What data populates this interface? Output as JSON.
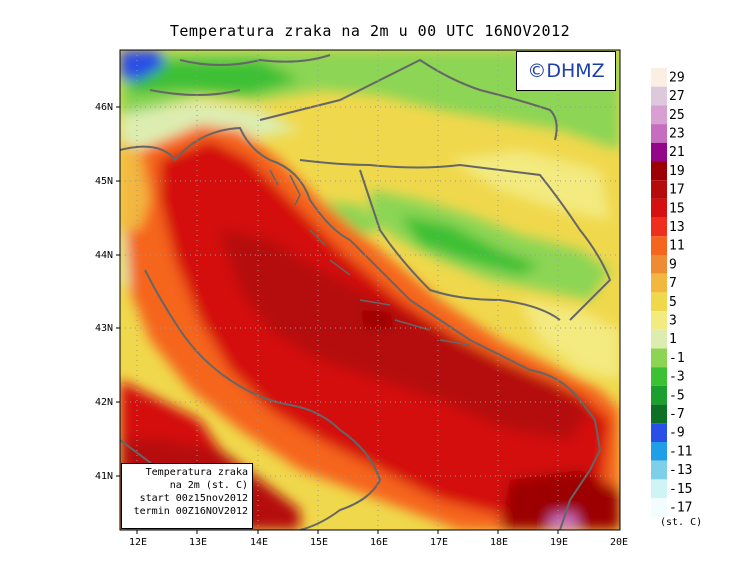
{
  "title": "Temperatura zraka na 2m u 00 UTC 16NOV2012",
  "logo_text": "©DHMZ",
  "info_box": {
    "line1": "Temperatura zraka",
    "line2": "na 2m (st. C)",
    "line3": "start 00z15nov2012",
    "line4": "termin 00Z16NOV2012"
  },
  "lat_labels": [
    "46N",
    "45N",
    "44N",
    "43N",
    "42N",
    "41N"
  ],
  "lon_labels": [
    "12E",
    "13E",
    "14E",
    "15E",
    "16E",
    "17E",
    "18E",
    "19E",
    "20E"
  ],
  "legend": {
    "unit": "(st. C)",
    "labels": [
      "29",
      "27",
      "25",
      "23",
      "21",
      "19",
      "17",
      "15",
      "13",
      "11",
      "9",
      "7",
      "5",
      "3",
      "1",
      "-1",
      "-3",
      "-5",
      "-7",
      "-9",
      "-11",
      "-13",
      "-15",
      "-17"
    ],
    "colors": [
      "#fbeee2",
      "#ddc8dc",
      "#d79fd2",
      "#c66dc0",
      "#93058a",
      "#9c0004",
      "#b50b0b",
      "#d41010",
      "#ee2f1c",
      "#f5651e",
      "#ef8b33",
      "#f2b73f",
      "#f0d84c",
      "#f3ea80",
      "#ddedb1",
      "#8cd554",
      "#3cc034",
      "#1c9f2f",
      "#0c7025",
      "#2a4ee6",
      "#219ee8",
      "#7fcfe8",
      "#cff4f6",
      "#f2fefe"
    ]
  }
}
